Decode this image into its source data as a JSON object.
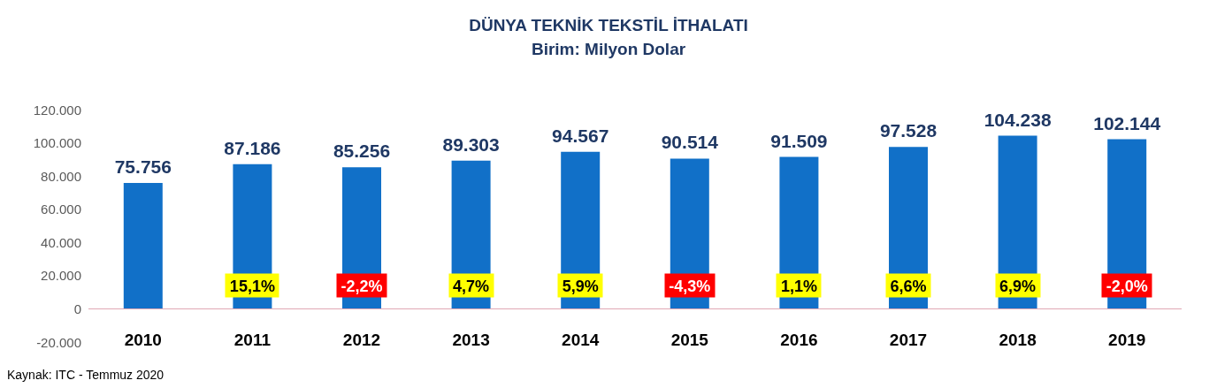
{
  "chart_data": {
    "type": "bar",
    "title": "DÜNYA TEKNİK TEKSTİL İTHALATI",
    "subtitle": "Birim: Milyon Dolar",
    "categories": [
      "2010",
      "2011",
      "2012",
      "2013",
      "2014",
      "2015",
      "2016",
      "2017",
      "2018",
      "2019"
    ],
    "values": [
      75756,
      87186,
      85256,
      89303,
      94567,
      90514,
      91509,
      97528,
      104238,
      102144
    ],
    "value_labels": [
      "75.756",
      "87.186",
      "85.256",
      "89.303",
      "94.567",
      "90.514",
      "91.509",
      "97.528",
      "104.238",
      "102.144"
    ],
    "color": "#1170c8",
    "ylim": [
      -20000,
      120000
    ],
    "yticks": [
      {
        "value": -20000,
        "label": "-20.000"
      },
      {
        "value": 0,
        "label": "0"
      },
      {
        "value": 20000,
        "label": "20.000"
      },
      {
        "value": 40000,
        "label": "40.000"
      },
      {
        "value": 60000,
        "label": "60.000"
      },
      {
        "value": 80000,
        "label": "80.000"
      },
      {
        "value": 100000,
        "label": "100.000"
      },
      {
        "value": 120000,
        "label": "120.000"
      }
    ],
    "grid": false,
    "annotations": [
      "15,1%",
      "-2,2%",
      "4,7%",
      "5,9%",
      "-4,3%",
      "1,1%",
      "6,6%",
      "6,9%",
      "-2,0%",
      "Kaynak: ITC - Temmuz 2020"
    ]
  }
}
